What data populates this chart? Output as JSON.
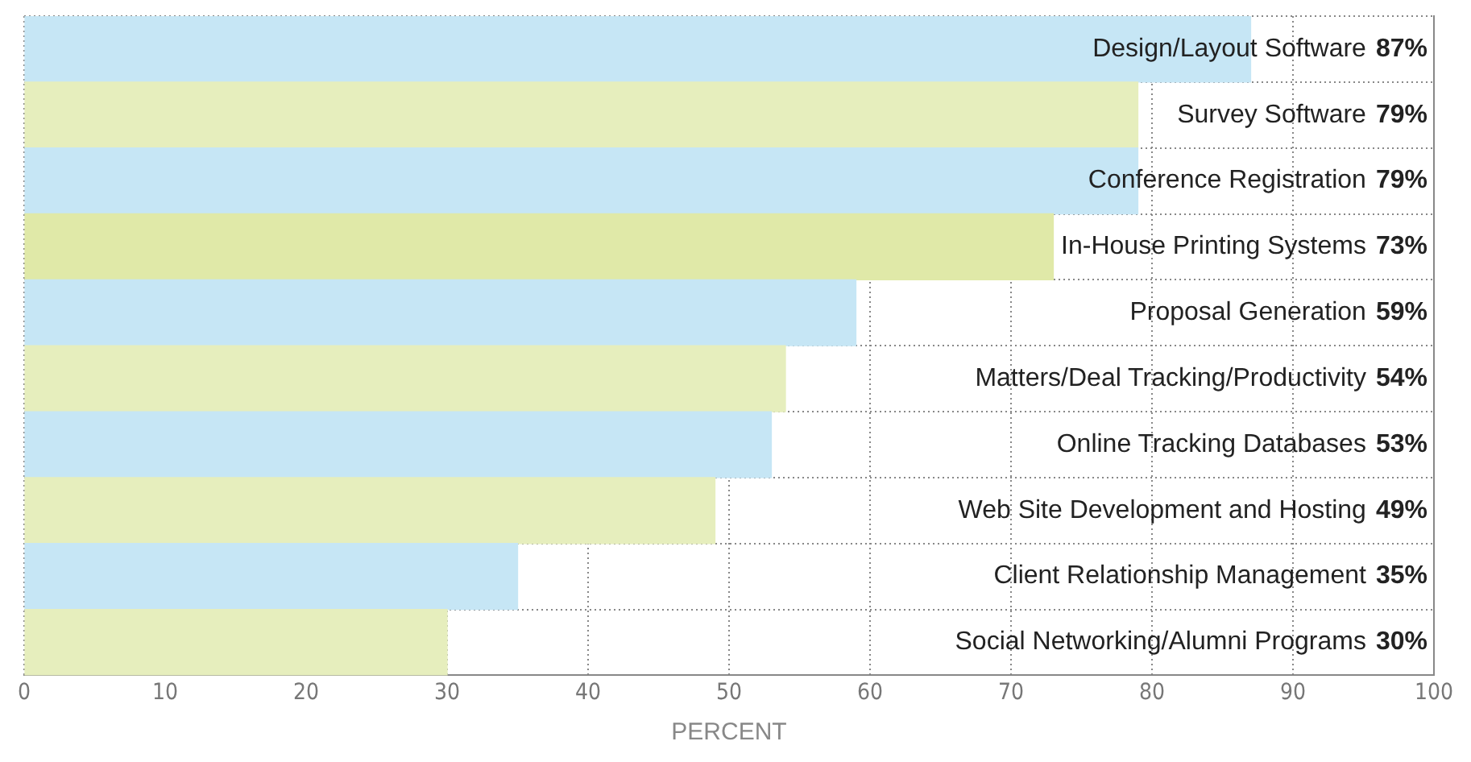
{
  "chart_data": {
    "type": "bar",
    "orientation": "horizontal",
    "xlabel": "PERCENT",
    "categories": [
      "Design/Layout Software",
      "Survey Software",
      "Conference Registration",
      "In-House Printing Systems",
      "Proposal Generation",
      "Matters/Deal Tracking/Productivity",
      "Online Tracking Databases",
      "Web Site Development and Hosting",
      "Client Relationship Management",
      "Social Networking/Alumni Programs"
    ],
    "values": [
      87,
      79,
      79,
      73,
      59,
      54,
      53,
      49,
      35,
      30
    ],
    "colors": [
      "#c6e6f5",
      "#e6eebd",
      "#c6e6f5",
      "#e0e9a8",
      "#c6e6f5",
      "#e6eebd",
      "#c6e6f5",
      "#e6eebd",
      "#c6e6f5",
      "#e6eebd"
    ],
    "xlim": [
      0,
      100
    ],
    "xticks": [
      0,
      10,
      20,
      30,
      40,
      50,
      60,
      70,
      80,
      90,
      100
    ],
    "value_labels": [
      "87%",
      "79%",
      "79%",
      "73%",
      "59%",
      "54%",
      "53%",
      "49%",
      "35%",
      "30%"
    ],
    "grid": true
  }
}
